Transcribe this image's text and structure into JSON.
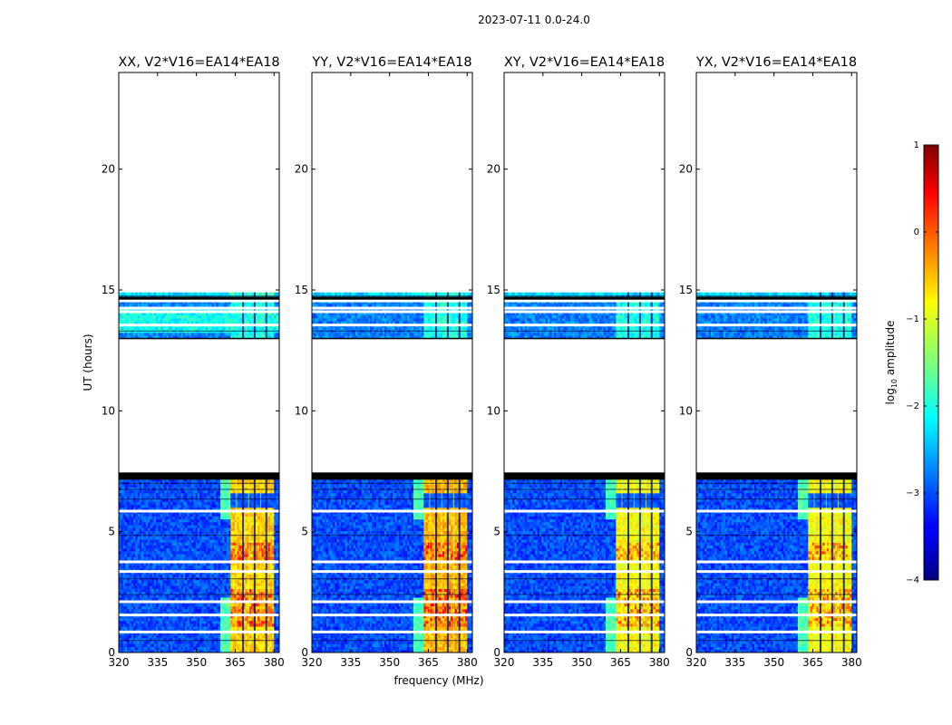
{
  "suptitle": "2023-07-11 0.0-24.0",
  "chart_data": {
    "type": "heatmap",
    "title": "2023-07-11 0.0-24.0",
    "xlabel": "frequency (MHz)",
    "ylabel": "UT (hours)",
    "xlim": [
      320,
      382
    ],
    "ylim": [
      0,
      24
    ],
    "xticks": [
      320,
      335,
      350,
      365,
      380
    ],
    "yticks": [
      0,
      5,
      10,
      15,
      20
    ],
    "panels": [
      {
        "title": "XX, V2*V16=EA14*EA18",
        "rfi_level": 2.9,
        "top_level": 1.4
      },
      {
        "title": "YY, V2*V16=EA14*EA18",
        "rfi_level": 3.0,
        "top_level": 1.3
      },
      {
        "title": "XY, V2*V16=EA14*EA18",
        "rfi_level": 2.7,
        "top_level": 1.0
      },
      {
        "title": "YX, V2*V16=EA14*EA18",
        "rfi_level": 2.7,
        "top_level": 1.0
      }
    ],
    "data_segments_hours": [
      [
        0,
        7.3
      ],
      [
        13.0,
        14.9
      ]
    ],
    "flagged_gaps_hours": [
      0.85,
      1.55,
      2.1,
      3.35,
      3.75,
      5.85,
      13.55,
      14.1,
      14.25,
      14.55
    ],
    "rfi_band_mhz": [
      363,
      380
    ],
    "rfi_subband_edges_mhz": [
      368,
      372.5,
      377
    ],
    "colorbar": {
      "label": "log",
      "label_sub": "10",
      "label_rest": " amplitude",
      "range": [
        -4,
        1
      ],
      "ticks": [
        1,
        0,
        -1,
        -2,
        -3,
        -4
      ]
    }
  }
}
